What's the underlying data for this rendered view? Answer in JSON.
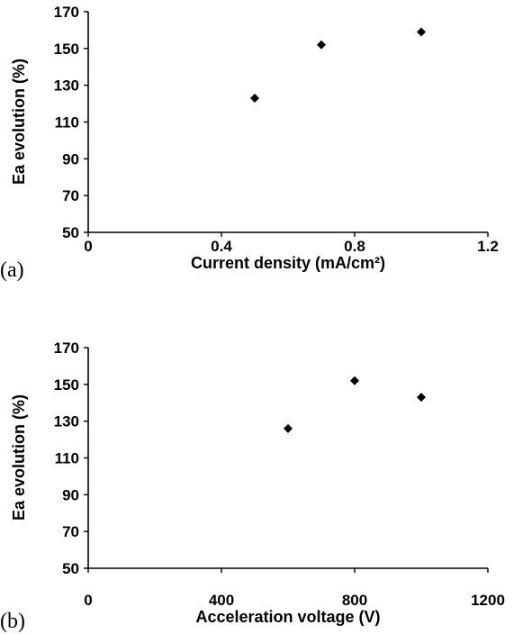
{
  "chart_data": [
    {
      "type": "scatter",
      "panel_label": "(a)",
      "xlabel": "Current density (mA/cm²)",
      "ylabel": "Ea evolution (%)",
      "xlim": [
        0,
        1.2
      ],
      "ylim": [
        50,
        170
      ],
      "xticks": [
        "0",
        "0.4",
        "0.8",
        "1.2"
      ],
      "yticks": [
        "50",
        "70",
        "90",
        "110",
        "130",
        "150",
        "170"
      ],
      "x": [
        0.5,
        0.7,
        1.0
      ],
      "y": [
        123,
        152,
        159
      ],
      "marker": "diamond",
      "color": "#000000",
      "grid": false
    },
    {
      "type": "scatter",
      "panel_label": "(b)",
      "xlabel": "Acceleration voltage (V)",
      "ylabel": "Ea evolution (%)",
      "xlim": [
        0,
        1200
      ],
      "ylim": [
        50,
        170
      ],
      "xticks": [
        "0",
        "400",
        "800",
        "1200"
      ],
      "yticks": [
        "50",
        "70",
        "90",
        "110",
        "130",
        "150",
        "170"
      ],
      "x": [
        600,
        800,
        1000
      ],
      "y": [
        126,
        152,
        143
      ],
      "marker": "diamond",
      "color": "#000000",
      "grid": false
    }
  ]
}
